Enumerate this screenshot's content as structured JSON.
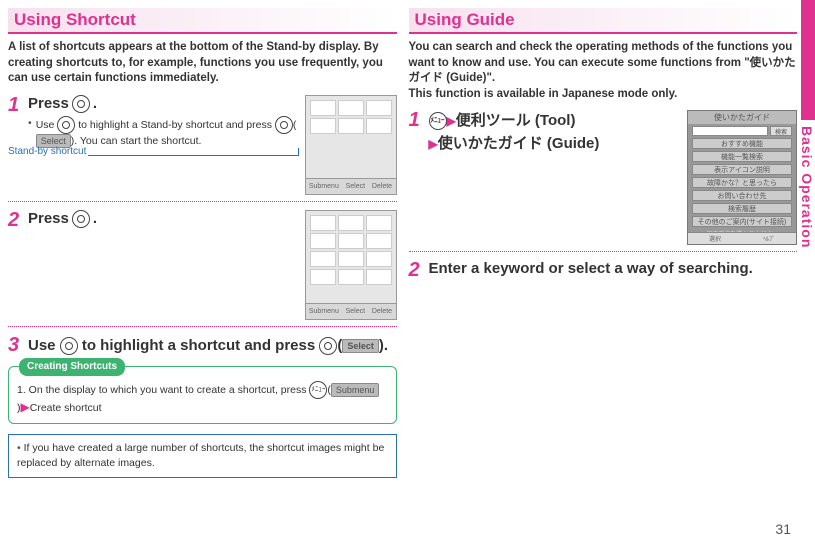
{
  "page_number": "31",
  "side_label": "Basic Operation",
  "colors": {
    "accent": "#e03090",
    "green": "#3cb371",
    "blue": "#2a6fb5"
  },
  "left": {
    "heading": "Using Shortcut",
    "intro": "A list of shortcuts appears at the bottom of the Stand-by display. By creating shortcuts to, for example, functions you use frequently, you can use certain functions immediately.",
    "step1": {
      "num": "1",
      "title_pre": "Press ",
      "title_post": ".",
      "bullet_pre": "Use ",
      "bullet_mid": " to highlight a Stand-by shortcut and press ",
      "bullet_btn": "Select",
      "bullet_post": ". You can start the shortcut.",
      "annotation": "Stand-by shortcut"
    },
    "step2": {
      "num": "2",
      "title_pre": "Press ",
      "title_post": "."
    },
    "step3": {
      "num": "3",
      "title_a": "Use ",
      "title_b": " to highlight a shortcut and press ",
      "title_btn": "Select",
      "title_c": "."
    },
    "greenbox": {
      "tab": "Creating Shortcuts",
      "line1_pre": "1. On the display to which you want to create a shortcut, press ",
      "line1_btn": "Submenu",
      "line1_arrow": "▶",
      "line1_post": "Create shortcut"
    },
    "bluebox": "If you have created a large number of shortcuts, the shortcut images might be replaced by alternate images.",
    "shot_bar": {
      "a": "Submenu",
      "b": "Select",
      "c": "Delete"
    }
  },
  "right": {
    "heading": "Using Guide",
    "intro": "You can search and check the operating methods of the functions you want to know and use. You can execute some functions from \"使いかたガイド (Guide)\".\nThis function is available in Japanese mode only.",
    "step1": {
      "num": "1",
      "line1": "便利ツール (Tool)",
      "line2": "使いかたガイド (Guide)",
      "arrow": "▶"
    },
    "step2": {
      "num": "2",
      "title": "Enter a keyword or select a way of searching."
    },
    "shot": {
      "header": "使いかたガイド",
      "search_btn": "検索",
      "items": [
        "おすすめ機能",
        "機能一覧検索",
        "表示アイコン説明",
        "故障かな？と思ったら",
        "お問い合わせ先",
        "検索履歴",
        "その他のご案内(サイト接続)"
      ],
      "foot": "探す方法を選んでください",
      "bot_a": "選択",
      "bot_b": "ﾍﾙﾌﾟ"
    }
  }
}
